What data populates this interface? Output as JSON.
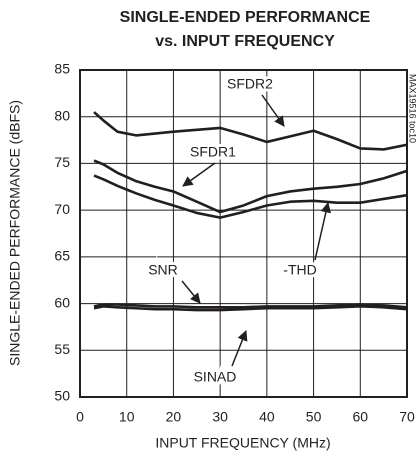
{
  "chart_data": {
    "type": "line",
    "title": "SINGLE-ENDED PERFORMANCE",
    "subtitle": "vs. INPUT FREQUENCY",
    "code": "MAX19516 toc10",
    "x_label": "INPUT FREQUENCY (MHz)",
    "y_label": "SINGLE-ENDED PERFORMANCE (dBFS)",
    "x": [
      3,
      5,
      8,
      12,
      16,
      20,
      25,
      30,
      35,
      40,
      45,
      50,
      55,
      60,
      65,
      70
    ],
    "series": [
      {
        "name": "SFDR2",
        "color": "#231f20",
        "values": [
          80.5,
          79.6,
          78.4,
          78.0,
          78.2,
          78.4,
          78.6,
          78.8,
          78.1,
          77.3,
          77.9,
          78.5,
          77.6,
          76.6,
          76.5,
          77.0
        ]
      },
      {
        "name": "SFDR1",
        "color": "#231f20",
        "values": [
          75.3,
          74.9,
          74.0,
          73.1,
          72.5,
          72.0,
          70.9,
          69.8,
          70.5,
          71.5,
          72.0,
          72.3,
          72.5,
          72.8,
          73.4,
          74.2
        ]
      },
      {
        "name": "-THD",
        "color": "#231f20",
        "values": [
          73.7,
          73.3,
          72.6,
          71.8,
          71.1,
          70.5,
          69.7,
          69.2,
          69.8,
          70.5,
          70.9,
          71.0,
          70.8,
          70.8,
          71.2,
          71.6
        ]
      },
      {
        "name": "SNR",
        "color": "#231f20",
        "values": [
          59.7,
          59.9,
          59.9,
          59.8,
          59.7,
          59.7,
          59.6,
          59.6,
          59.6,
          59.7,
          59.7,
          59.7,
          59.8,
          59.9,
          59.8,
          59.6
        ]
      },
      {
        "name": "SINAD",
        "color": "#231f20",
        "values": [
          59.5,
          59.7,
          59.6,
          59.5,
          59.4,
          59.4,
          59.3,
          59.3,
          59.4,
          59.5,
          59.5,
          59.5,
          59.6,
          59.7,
          59.6,
          59.4
        ]
      }
    ],
    "xlim": [
      0,
      70
    ],
    "xticks": [
      0,
      10,
      20,
      30,
      40,
      50,
      60,
      70
    ],
    "ylim": [
      50,
      85
    ],
    "yticks": [
      50,
      55,
      60,
      65,
      70,
      75,
      80,
      85
    ],
    "grid": true
  }
}
